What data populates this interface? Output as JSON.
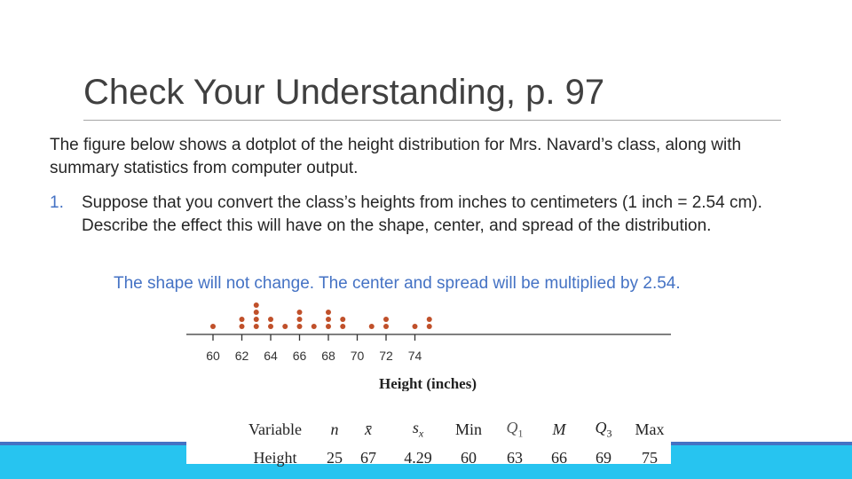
{
  "slide": {
    "title": "Check Your Understanding, p. 97",
    "intro": "The figure below shows a dotplot of the height distribution for Mrs. Navard’s class, along with summary statistics from computer output.",
    "item_number": "1.",
    "item_text": "Suppose that you convert the class’s heights from inches to centimeters (1 inch = 2.54 cm). Describe the effect this will have on the shape, center, and spread of the distribution.",
    "answer": "The shape will not change. The center and spread will be multiplied by 2.54."
  },
  "chart_data": {
    "type": "scatter",
    "subtype": "dotplot",
    "xlabel": "Height (inches)",
    "ylabel": "",
    "xlim": [
      60,
      76
    ],
    "ticks": [
      60,
      62,
      64,
      66,
      68,
      70,
      72,
      74
    ],
    "points": [
      {
        "x": 60,
        "count": 1
      },
      {
        "x": 62,
        "count": 2
      },
      {
        "x": 63,
        "count": 4
      },
      {
        "x": 64,
        "count": 2
      },
      {
        "x": 65,
        "count": 1
      },
      {
        "x": 66,
        "count": 3
      },
      {
        "x": 67,
        "count": 1
      },
      {
        "x": 68,
        "count": 3
      },
      {
        "x": 69,
        "count": 2
      },
      {
        "x": 71,
        "count": 1
      },
      {
        "x": 72,
        "count": 2
      },
      {
        "x": 74,
        "count": 1
      },
      {
        "x": 75,
        "count": 2
      }
    ],
    "dot_color": "#c0502a",
    "summary": {
      "headers": [
        "Variable",
        "n",
        "x̄",
        "s",
        "x",
        "Min",
        "Q",
        "1",
        "M",
        "Q",
        "3",
        "Max"
      ],
      "row": [
        "Height",
        "25",
        "67",
        "4.29",
        "60",
        "63",
        "66",
        "69",
        "75"
      ]
    }
  }
}
